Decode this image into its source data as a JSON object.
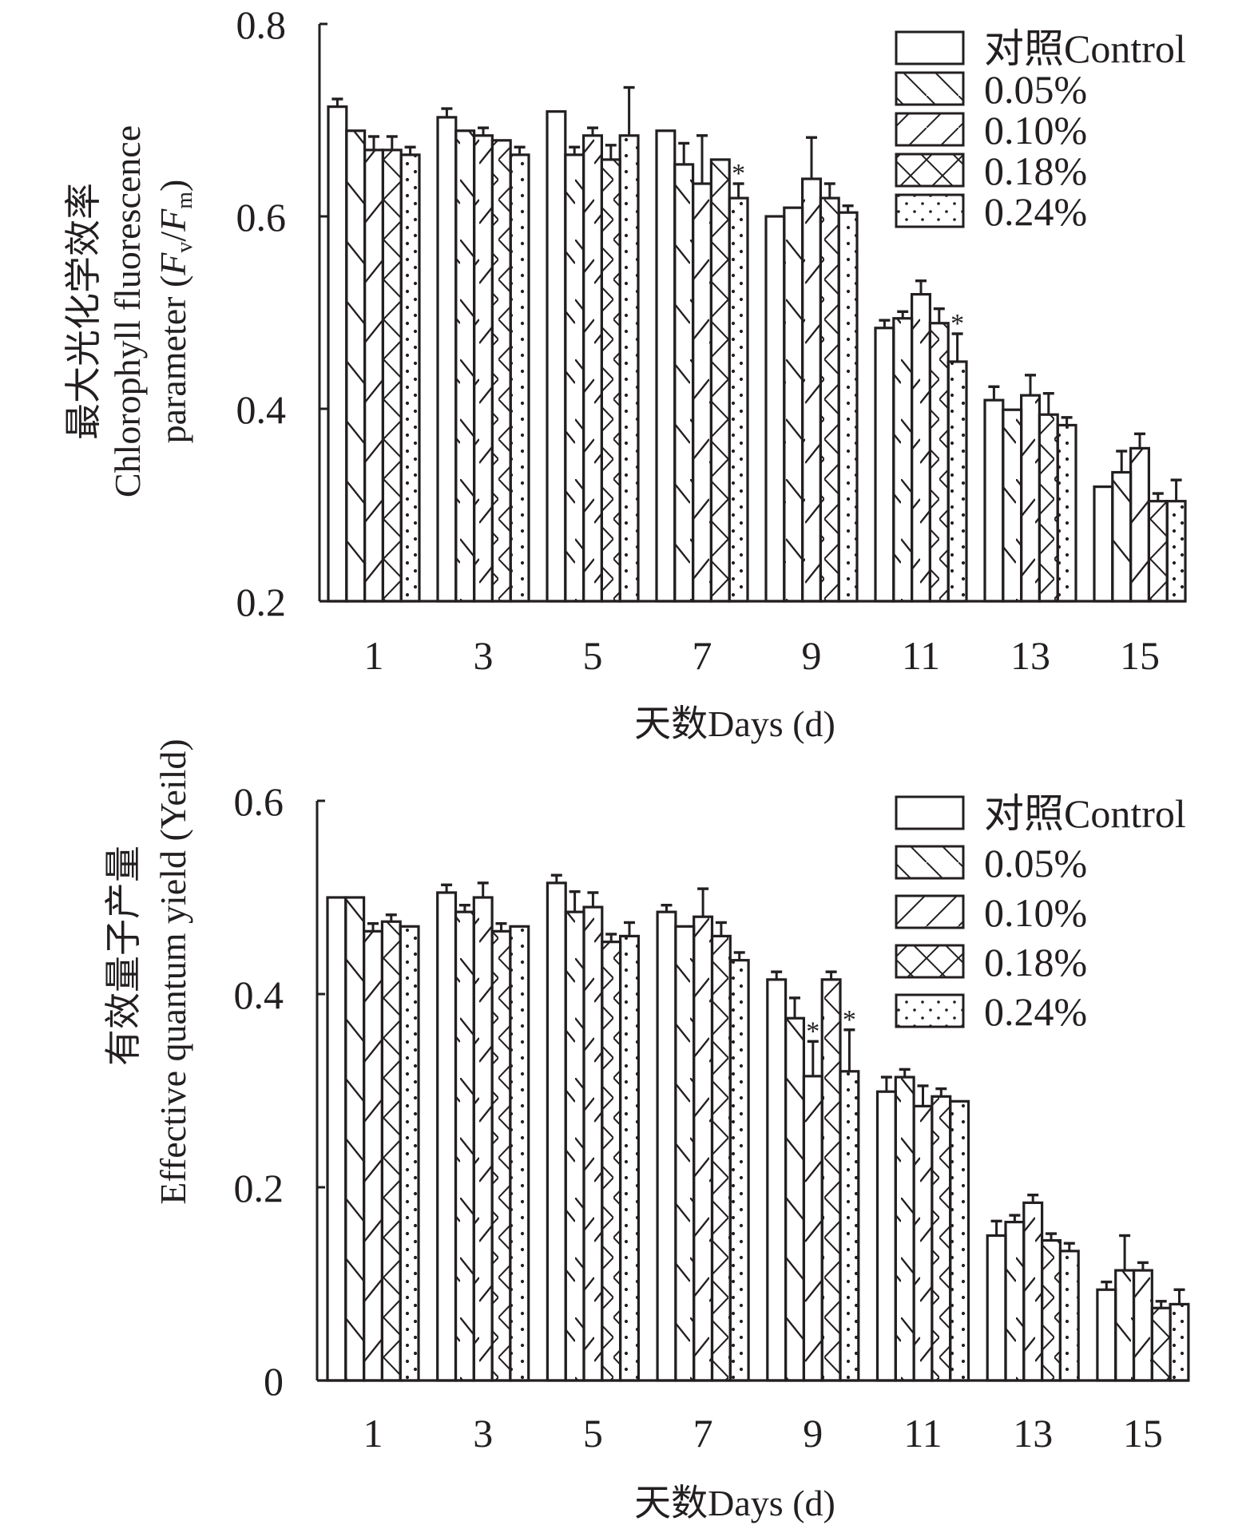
{
  "chart_data": [
    {
      "type": "bar",
      "title": "",
      "ylabel_cn": "最大光化学效率",
      "ylabel_en_line1": "Chlorophyll fluorescence",
      "ylabel_en_line2_prefix": "parameter (",
      "ylabel_en_line2_fv": "F",
      "ylabel_en_line2_fv_sub": "v",
      "ylabel_en_line2_slash": "/",
      "ylabel_en_line2_fm": "F",
      "ylabel_en_line2_fm_sub": "m",
      "ylabel_en_line2_suffix": ")",
      "xlabel": "天数Days (d)",
      "ylim": [
        0.2,
        0.8
      ],
      "yticks": [
        "0.2",
        "0.4",
        "0.6",
        "0.8"
      ],
      "ytick_values": [
        0.2,
        0.4,
        0.6,
        0.8
      ],
      "grid": false,
      "legend_position": "top-right",
      "categories": [
        "1",
        "3",
        "5",
        "7",
        "9",
        "11",
        "13",
        "15"
      ],
      "series": [
        {
          "name": "对照Control",
          "pattern": "none",
          "values": [
            0.714,
            0.703,
            0.709,
            0.689,
            0.6,
            0.484,
            0.409,
            0.319
          ],
          "errors": [
            0.008,
            0.009,
            0,
            0,
            0,
            0.008,
            0.014,
            0
          ],
          "significant": [
            false,
            false,
            false,
            false,
            false,
            false,
            false,
            false
          ]
        },
        {
          "name": "0.05%",
          "pattern": "backslash",
          "values": [
            0.689,
            0.689,
            0.664,
            0.654,
            0.609,
            0.494,
            0.399,
            0.334
          ],
          "errors": [
            0,
            0,
            0.008,
            0.022,
            0,
            0.007,
            0,
            0.022
          ],
          "significant": [
            false,
            false,
            false,
            false,
            false,
            false,
            false,
            false
          ]
        },
        {
          "name": "0.10%",
          "pattern": "slash",
          "values": [
            0.669,
            0.684,
            0.684,
            0.634,
            0.639,
            0.519,
            0.414,
            0.359
          ],
          "errors": [
            0.014,
            0.008,
            0.008,
            0.05,
            0.043,
            0.014,
            0.021,
            0.015
          ],
          "significant": [
            false,
            false,
            false,
            false,
            false,
            false,
            false,
            false
          ]
        },
        {
          "name": "0.18%",
          "pattern": "cross",
          "values": [
            0.669,
            0.679,
            0.659,
            0.659,
            0.619,
            0.489,
            0.394,
            0.304
          ],
          "errors": [
            0.014,
            0,
            0.015,
            0,
            0.015,
            0.015,
            0.022,
            0.008
          ],
          "significant": [
            false,
            false,
            false,
            false,
            false,
            false,
            false,
            false
          ]
        },
        {
          "name": "0.24%",
          "pattern": "dots",
          "values": [
            0.664,
            0.664,
            0.684,
            0.619,
            0.604,
            0.449,
            0.383,
            0.304
          ],
          "errors": [
            0.008,
            0.008,
            0.05,
            0.015,
            0.007,
            0.029,
            0.008,
            0.022
          ],
          "significant": [
            false,
            false,
            false,
            true,
            false,
            true,
            false,
            false
          ]
        }
      ],
      "significance_marker": "*"
    },
    {
      "type": "bar",
      "title": "",
      "ylabel_cn": "有效量子产量",
      "ylabel_en_line1": "Effective quantum yield (Yeild)",
      "xlabel": "天数Days (d)",
      "ylim": [
        0,
        0.6
      ],
      "yticks": [
        "0",
        "0.2",
        "0.4",
        "0.6"
      ],
      "ytick_values": [
        0,
        0.2,
        0.4,
        0.6
      ],
      "grid": false,
      "legend_position": "top-right",
      "categories": [
        "1",
        "3",
        "5",
        "7",
        "9",
        "11",
        "13",
        "15"
      ],
      "series": [
        {
          "name": "对照Control",
          "pattern": "none",
          "values": [
            0.5,
            0.505,
            0.515,
            0.485,
            0.415,
            0.299,
            0.15,
            0.094
          ],
          "errors": [
            0,
            0.008,
            0.008,
            0.007,
            0.008,
            0.015,
            0.015,
            0.008
          ],
          "significant": [
            false,
            false,
            false,
            false,
            false,
            false,
            false,
            false
          ]
        },
        {
          "name": "0.05%",
          "pattern": "backslash",
          "values": [
            0.5,
            0.485,
            0.485,
            0.47,
            0.375,
            0.314,
            0.164,
            0.114
          ],
          "errors": [
            0,
            0.007,
            0.021,
            0,
            0.021,
            0.008,
            0.007,
            0.036
          ],
          "significant": [
            false,
            false,
            false,
            false,
            false,
            false,
            false,
            false
          ]
        },
        {
          "name": "0.10%",
          "pattern": "slash",
          "values": [
            0.465,
            0.5,
            0.49,
            0.48,
            0.315,
            0.284,
            0.184,
            0.114
          ],
          "errors": [
            0.008,
            0.015,
            0.015,
            0.029,
            0.036,
            0.021,
            0.008,
            0.008
          ],
          "significant": [
            false,
            false,
            false,
            false,
            true,
            false,
            false,
            false
          ]
        },
        {
          "name": "0.18%",
          "pattern": "cross",
          "values": [
            0.475,
            0.465,
            0.454,
            0.46,
            0.415,
            0.294,
            0.145,
            0.075
          ],
          "errors": [
            0.007,
            0.008,
            0.008,
            0.014,
            0.008,
            0.008,
            0.007,
            0.007
          ],
          "significant": [
            false,
            false,
            false,
            false,
            false,
            false,
            false,
            false
          ]
        },
        {
          "name": "0.24%",
          "pattern": "dots",
          "values": [
            0.47,
            0.47,
            0.46,
            0.435,
            0.32,
            0.289,
            0.134,
            0.079
          ],
          "errors": [
            0,
            0,
            0.014,
            0.008,
            0.043,
            0,
            0.008,
            0.015
          ],
          "significant": [
            false,
            false,
            false,
            false,
            true,
            false,
            false,
            false
          ]
        }
      ],
      "significance_marker": "*"
    }
  ]
}
